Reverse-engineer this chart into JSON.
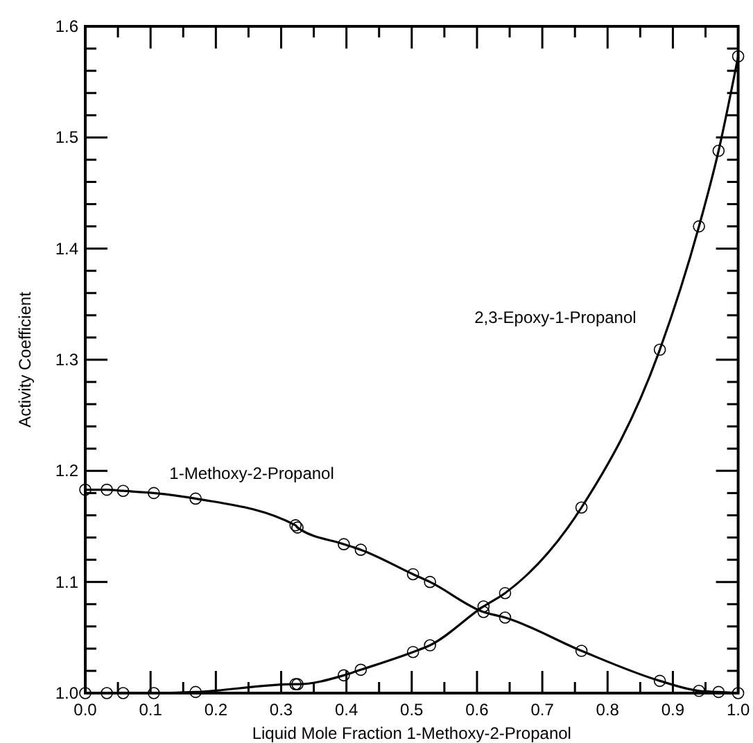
{
  "chart_data": {
    "type": "line",
    "xlabel": "Liquid Mole Fraction 1-Methoxy-2-Propanol",
    "ylabel": "Activity Coefficient",
    "marker": "circle",
    "line_style": "solid",
    "grid": false,
    "xlim": [
      0,
      1
    ],
    "ylim": [
      1,
      1.6
    ],
    "xticks": [
      {
        "value": 0,
        "label": "0.0"
      },
      {
        "value": 0.05,
        "label": null
      },
      0.1,
      {
        "value": 0.15,
        "label": null
      },
      0.2,
      {
        "value": 0.25,
        "label": null
      },
      0.3,
      {
        "value": 0.35,
        "label": null
      },
      0.4,
      {
        "value": 0.45,
        "label": null
      },
      0.5,
      {
        "value": 0.55,
        "label": null
      },
      0.6,
      {
        "value": 0.65,
        "label": null
      },
      0.7,
      {
        "value": 0.75,
        "label": null
      },
      0.8,
      {
        "value": 0.85,
        "label": null
      },
      0.9,
      {
        "value": 0.95,
        "label": null
      },
      {
        "value": 1,
        "label": "1.0"
      }
    ],
    "yticks": [
      {
        "value": 1,
        "label": "1.0"
      },
      {
        "value": 1.02,
        "label": null
      },
      {
        "value": 1.04,
        "label": null
      },
      {
        "value": 1.06,
        "label": null
      },
      {
        "value": 1.08,
        "label": null
      },
      1.1,
      {
        "value": 1.12,
        "label": null
      },
      {
        "value": 1.14,
        "label": null
      },
      {
        "value": 1.16,
        "label": null
      },
      {
        "value": 1.18,
        "label": null
      },
      1.2,
      {
        "value": 1.22,
        "label": null
      },
      {
        "value": 1.24,
        "label": null
      },
      {
        "value": 1.26,
        "label": null
      },
      {
        "value": 1.28,
        "label": null
      },
      1.3,
      {
        "value": 1.32,
        "label": null
      },
      {
        "value": 1.34,
        "label": null
      },
      {
        "value": 1.36,
        "label": null
      },
      {
        "value": 1.38,
        "label": null
      },
      1.4,
      {
        "value": 1.42,
        "label": null
      },
      {
        "value": 1.44,
        "label": null
      },
      {
        "value": 1.46,
        "label": null
      },
      {
        "value": 1.48,
        "label": null
      },
      1.5,
      {
        "value": 1.52,
        "label": null
      },
      {
        "value": 1.54,
        "label": null
      },
      {
        "value": 1.56,
        "label": null
      },
      {
        "value": 1.58,
        "label": null
      },
      1.6
    ],
    "x": [
      0,
      0.033,
      0.058,
      0.105,
      0.169,
      0.322,
      0.325,
      0.396,
      0.422,
      0.502,
      0.528,
      0.61,
      0.643,
      0.76,
      0.88,
      0.94,
      0.97,
      1
    ],
    "series": [
      {
        "name": "1-Methoxy-2-Propanol",
        "color": "#000000",
        "values": [
          1.183,
          1.183,
          1.182,
          1.18,
          1.175,
          1.151,
          1.149,
          1.134,
          1.129,
          1.107,
          1.1,
          1.073,
          1.068,
          1.038,
          1.011,
          1.002,
          1.001,
          1.0
        ]
      },
      {
        "name": "2,3-Epoxy-1-Propanol",
        "color": "#000000",
        "values": [
          1.0,
          1.0,
          1.0,
          1.0,
          1.001,
          1.008,
          1.008,
          1.016,
          1.021,
          1.037,
          1.043,
          1.078,
          1.09,
          1.167,
          1.309,
          1.42,
          1.488,
          1.573
        ]
      }
    ]
  }
}
